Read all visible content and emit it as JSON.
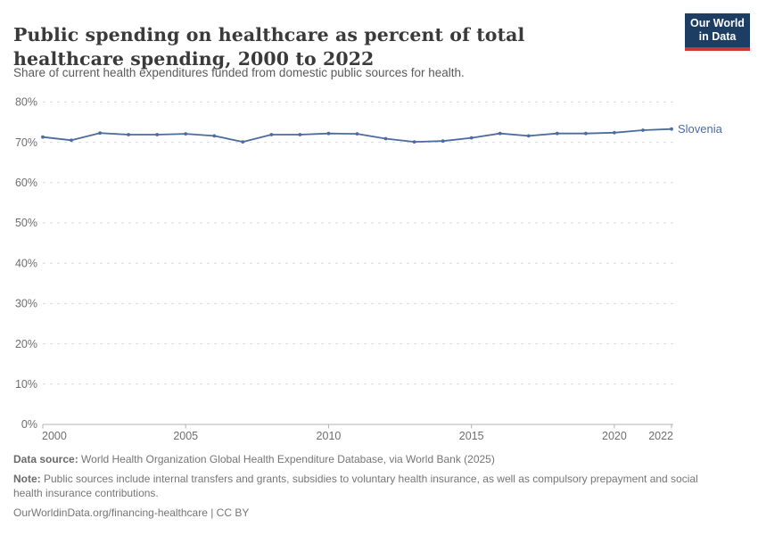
{
  "header": {
    "title": "Public spending on healthcare as percent of total healthcare spending, 2000 to 2022",
    "subtitle": "Share of current health expenditures funded from domestic public sources for health.",
    "logo": {
      "line1": "Our World",
      "line2": "in Data"
    }
  },
  "chart_data": {
    "type": "line",
    "title": "Public spending on healthcare as percent of total healthcare spending, 2000 to 2022",
    "xlabel": "",
    "ylabel": "",
    "xlim": [
      2000,
      2022
    ],
    "ylim": [
      0,
      80
    ],
    "yticks": [
      0,
      10,
      20,
      30,
      40,
      50,
      60,
      70,
      80
    ],
    "ytick_suffix": "%",
    "xticks": [
      2000,
      2005,
      2010,
      2015,
      2020,
      2022
    ],
    "grid": "horizontal-dashed",
    "legend_position": "end-of-line",
    "x": [
      2000,
      2001,
      2002,
      2003,
      2004,
      2005,
      2006,
      2007,
      2008,
      2009,
      2010,
      2011,
      2012,
      2013,
      2014,
      2015,
      2016,
      2017,
      2018,
      2019,
      2020,
      2021,
      2022
    ],
    "series": [
      {
        "name": "Slovenia",
        "color": "#4c6ba0",
        "values": [
          71.3,
          70.5,
          72.3,
          71.9,
          71.9,
          72.1,
          71.6,
          70.1,
          71.9,
          71.9,
          72.2,
          72.1,
          70.9,
          70.1,
          70.3,
          71.1,
          72.2,
          71.6,
          72.2,
          72.2,
          72.4,
          73.0,
          73.3
        ]
      }
    ]
  },
  "footer": {
    "data_source_label": "Data source:",
    "data_source_text": " World Health Organization Global Health Expenditure Database, via World Bank (2025)",
    "note_label": "Note:",
    "note_text": " Public sources include internal transfers and grants, subsidies to voluntary health insurance, as well as compulsory prepayment and social health insurance contributions.",
    "citation": "OurWorldinData.org/financing-healthcare | CC BY"
  },
  "colors": {
    "line": "#4c6ba0",
    "gridline": "#dadada",
    "axis": "#b3b3b3",
    "tick_text": "#6e6e6e",
    "logo_bg": "#1d3d63",
    "logo_bar": "#cb3a32"
  }
}
